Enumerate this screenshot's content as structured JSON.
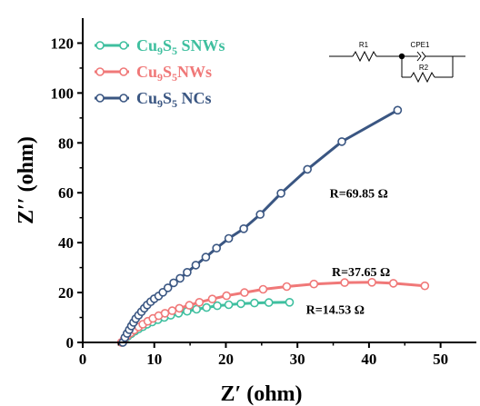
{
  "chart_data": {
    "type": "line",
    "title": "",
    "xlabel": "Z′ (ohm)",
    "ylabel": "Z′′ (ohm)",
    "xlim": [
      0,
      55
    ],
    "ylim": [
      0,
      130
    ],
    "xticks": [
      0,
      10,
      20,
      30,
      40,
      50
    ],
    "yticks": [
      0,
      20,
      40,
      60,
      80,
      100,
      120
    ],
    "grid": false,
    "legend_position": "top-left",
    "series": [
      {
        "name": "Cu9S5 SNWs",
        "name_base": "Cu",
        "name_sub1": "9",
        "name_mid": "S",
        "name_sub2": "5",
        "name_suffix": " SNWs",
        "color": "#3fbf9f",
        "x": [
          5.5,
          5.9,
          6.3,
          6.8,
          7.3,
          7.8,
          8.4,
          9.0,
          9.7,
          10.5,
          11.4,
          12.3,
          13.4,
          14.6,
          15.9,
          17.3,
          18.8,
          20.4,
          22.1,
          24.0,
          26.0,
          28.9
        ],
        "y": [
          0.0,
          1.3,
          2.4,
          3.5,
          4.5,
          5.4,
          6.3,
          7.3,
          8.2,
          9.1,
          10.0,
          10.9,
          11.7,
          12.5,
          13.3,
          14.0,
          14.7,
          15.1,
          15.5,
          15.8,
          16.0,
          16.1
        ]
      },
      {
        "name": "Cu9S5 NWs",
        "name_base": "Cu",
        "name_sub1": "9",
        "name_mid": "S",
        "name_sub2": "5",
        "name_suffix": "NWs",
        "color": "#f07878",
        "x": [
          5.4,
          5.8,
          6.2,
          6.7,
          7.2,
          7.8,
          8.4,
          9.1,
          9.8,
          10.6,
          11.5,
          12.5,
          13.5,
          14.9,
          16.3,
          18.1,
          20.1,
          22.6,
          25.2,
          28.5,
          32.3,
          36.6,
          40.4,
          43.4,
          47.8
        ],
        "y": [
          0.0,
          1.4,
          2.6,
          3.8,
          5.0,
          6.2,
          7.3,
          8.5,
          9.6,
          10.7,
          11.7,
          12.7,
          13.7,
          14.9,
          16.1,
          17.4,
          18.7,
          20.0,
          21.3,
          22.4,
          23.4,
          24.0,
          24.1,
          23.7,
          22.7
        ]
      },
      {
        "name": "Cu9S5 NCs",
        "name_base": "Cu",
        "name_sub1": "9",
        "name_mid": "S",
        "name_sub2": "5",
        "name_suffix": " NCs",
        "color": "#3a5682",
        "x": [
          5.6,
          5.9,
          6.2,
          6.5,
          6.8,
          7.1,
          7.4,
          7.8,
          8.2,
          8.6,
          9.0,
          9.5,
          10.0,
          10.6,
          11.2,
          11.9,
          12.7,
          13.6,
          14.6,
          15.8,
          17.2,
          18.7,
          20.4,
          22.5,
          24.8,
          27.7,
          31.4,
          36.2,
          44.0
        ],
        "y": [
          0.0,
          2.0,
          3.6,
          5.1,
          6.6,
          8.0,
          9.5,
          10.9,
          12.3,
          13.7,
          15.0,
          16.3,
          17.5,
          18.6,
          20.1,
          21.9,
          23.9,
          25.7,
          28.1,
          31.0,
          34.2,
          37.8,
          41.7,
          45.6,
          51.3,
          59.8,
          69.4,
          80.5,
          93.1
        ]
      }
    ],
    "annotations": [
      {
        "text": "R=69.85 Ω",
        "x": 34.5,
        "y": 58,
        "anchor": "start"
      },
      {
        "text": "R=37.65 Ω",
        "x": 34.8,
        "y": 26.5,
        "anchor": "start"
      },
      {
        "text": "R=14.53 Ω",
        "x": 31.2,
        "y": 11.5,
        "anchor": "start"
      }
    ],
    "circuit": {
      "labels": [
        "R1",
        "CPE1",
        "R2"
      ]
    }
  }
}
